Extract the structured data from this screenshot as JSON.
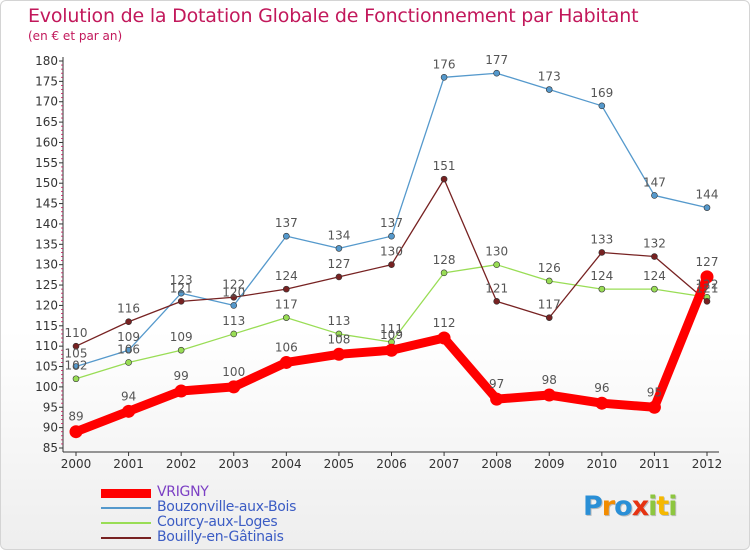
{
  "chart_data": {
    "type": "line",
    "title": "Evolution de la Dotation Globale de Fonctionnement par Habitant",
    "subtitle": "(en € et par an)",
    "xlabel": "",
    "ylabel": "",
    "categories": [
      "2000",
      "2001",
      "2002",
      "2003",
      "2004",
      "2005",
      "2006",
      "2007",
      "2008",
      "2009",
      "2010",
      "2011",
      "2012"
    ],
    "ylim": [
      85,
      180
    ],
    "yticks": [
      85,
      90,
      95,
      100,
      105,
      110,
      115,
      120,
      125,
      130,
      135,
      140,
      145,
      150,
      155,
      160,
      165,
      170,
      175,
      180
    ],
    "grid": false,
    "legend_position": "bottom-left",
    "series": [
      {
        "name": "VRIGNY",
        "color": "#ff0000",
        "values": [
          89,
          94,
          99,
          100,
          106,
          108,
          109,
          112,
          97,
          98,
          96,
          95,
          127
        ],
        "labels": [
          "89",
          "94",
          "99",
          "100",
          "106",
          "108",
          "109",
          "112",
          "97",
          "98",
          "96",
          "95",
          "127"
        ]
      },
      {
        "name": "Bouzonville-aux-Bois",
        "color": "#5599cc",
        "values": [
          105,
          109,
          123,
          120,
          137,
          134,
          137,
          176,
          177,
          173,
          169,
          147,
          144
        ],
        "labels": [
          "105",
          "109",
          "123",
          "120",
          "137",
          "134",
          "137",
          "176",
          "177",
          "173",
          "169",
          "147",
          "144"
        ]
      },
      {
        "name": "Courcy-aux-Loges",
        "color": "#99dd55",
        "values": [
          102,
          106,
          109,
          113,
          117,
          113,
          111,
          128,
          130,
          126,
          124,
          124,
          122
        ],
        "labels": [
          "102",
          "106",
          "109",
          "113",
          "117",
          "113",
          "111",
          "128",
          "130",
          "126",
          "124",
          "124",
          "122"
        ]
      },
      {
        "name": "Bouilly-en-Gâtinais",
        "color": "#772222",
        "values": [
          110,
          116,
          121,
          122,
          124,
          127,
          130,
          151,
          121,
          117,
          133,
          132,
          121
        ],
        "labels": [
          "110",
          "116",
          "121",
          "122",
          "124",
          "127",
          "130",
          "151",
          "121",
          "117",
          "133",
          "132",
          "121"
        ]
      }
    ]
  },
  "logo": {
    "letters": [
      "P",
      "r",
      "o",
      "x",
      "i",
      "t",
      "i"
    ],
    "colors": [
      "#2a8fd6",
      "#f28c00",
      "#2a8fd6",
      "#e63312",
      "#8dc63f",
      "#f5b800",
      "#8dc63f"
    ]
  }
}
